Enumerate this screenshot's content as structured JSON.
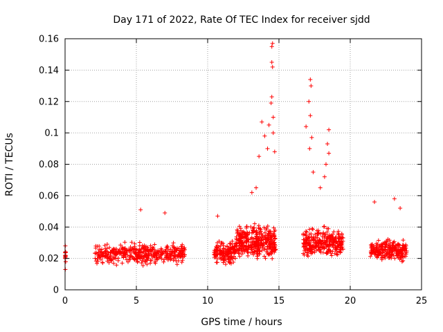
{
  "chart_data": {
    "type": "scatter",
    "title": "Day 171 of 2022, Rate Of TEC Index for receiver sjdd",
    "xlabel": "GPS time / hours",
    "ylabel": "ROTI / TECUs",
    "xlim": [
      0,
      25
    ],
    "ylim": [
      0,
      0.16
    ],
    "xticks": [
      0,
      5,
      10,
      15,
      20,
      25
    ],
    "xtick_labels": [
      "0",
      "5",
      "10",
      "15",
      "20",
      "25"
    ],
    "yticks": [
      0,
      0.02,
      0.04,
      0.06,
      0.08,
      0.1,
      0.12,
      0.14,
      0.16
    ],
    "ytick_labels": [
      "0",
      "0.02",
      "0.04",
      "0.06",
      "0.08",
      "0.1",
      "0.12",
      "0.14",
      "0.16"
    ],
    "grid": true,
    "marker": "+",
    "series_color": "#ff0000",
    "series": [
      {
        "name": "ROTI",
        "segments": [
          {
            "x_start": 0.0,
            "x_end": 0.05,
            "base": 0.022,
            "spread": 0.006,
            "density": 12
          },
          {
            "x_start": 2.1,
            "x_end": 8.4,
            "base": 0.023,
            "spread": 0.009,
            "density": 420
          },
          {
            "x_start": 10.4,
            "x_end": 12.0,
            "base": 0.024,
            "spread": 0.009,
            "density": 160
          },
          {
            "x_start": 12.0,
            "x_end": 14.8,
            "base": 0.03,
            "spread": 0.014,
            "density": 360
          },
          {
            "x_start": 16.7,
            "x_end": 19.5,
            "base": 0.03,
            "spread": 0.012,
            "density": 300
          },
          {
            "x_start": 21.4,
            "x_end": 24.0,
            "base": 0.025,
            "spread": 0.009,
            "density": 240
          }
        ],
        "peaks": [
          {
            "x": 14.55,
            "y": 0.157
          },
          {
            "x": 14.5,
            "y": 0.155
          },
          {
            "x": 14.5,
            "y": 0.145
          },
          {
            "x": 14.55,
            "y": 0.142
          },
          {
            "x": 14.5,
            "y": 0.123
          },
          {
            "x": 14.45,
            "y": 0.119
          },
          {
            "x": 14.6,
            "y": 0.11
          },
          {
            "x": 14.3,
            "y": 0.105
          },
          {
            "x": 14.6,
            "y": 0.1
          },
          {
            "x": 13.8,
            "y": 0.107
          },
          {
            "x": 14.0,
            "y": 0.098
          },
          {
            "x": 14.2,
            "y": 0.09
          },
          {
            "x": 13.6,
            "y": 0.085
          },
          {
            "x": 14.7,
            "y": 0.088
          },
          {
            "x": 13.4,
            "y": 0.065
          },
          {
            "x": 13.1,
            "y": 0.062
          },
          {
            "x": 17.2,
            "y": 0.134
          },
          {
            "x": 17.25,
            "y": 0.13
          },
          {
            "x": 17.1,
            "y": 0.12
          },
          {
            "x": 17.2,
            "y": 0.111
          },
          {
            "x": 16.9,
            "y": 0.104
          },
          {
            "x": 17.3,
            "y": 0.097
          },
          {
            "x": 17.15,
            "y": 0.09
          },
          {
            "x": 18.5,
            "y": 0.102
          },
          {
            "x": 18.4,
            "y": 0.093
          },
          {
            "x": 18.5,
            "y": 0.087
          },
          {
            "x": 18.3,
            "y": 0.08
          },
          {
            "x": 17.4,
            "y": 0.075
          },
          {
            "x": 18.2,
            "y": 0.072
          },
          {
            "x": 17.9,
            "y": 0.065
          },
          {
            "x": 5.3,
            "y": 0.051
          },
          {
            "x": 7.0,
            "y": 0.049
          },
          {
            "x": 10.7,
            "y": 0.047
          },
          {
            "x": 23.1,
            "y": 0.058
          },
          {
            "x": 21.7,
            "y": 0.056
          },
          {
            "x": 23.5,
            "y": 0.052
          },
          {
            "x": 0.02,
            "y": 0.028
          },
          {
            "x": 0.02,
            "y": 0.013
          }
        ]
      }
    ]
  }
}
